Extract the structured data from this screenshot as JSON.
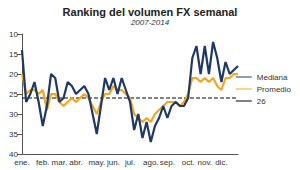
{
  "chart_data": {
    "type": "line",
    "title": "Ranking del volumen FX semanal",
    "subtitle": "2007-2014",
    "categories": [
      "ene.",
      null,
      null,
      null,
      null,
      "feb.",
      null,
      null,
      null,
      "mar.",
      null,
      null,
      null,
      "abr.",
      null,
      null,
      null,
      null,
      "may.",
      null,
      null,
      null,
      "jun.",
      null,
      null,
      null,
      "jul.",
      null,
      null,
      null,
      null,
      "ago.",
      null,
      null,
      null,
      "sep.",
      null,
      null,
      null,
      null,
      "oct.",
      null,
      null,
      null,
      "nov.",
      null,
      null,
      null,
      "dic.",
      null,
      null,
      null,
      null
    ],
    "series": [
      {
        "name": "Mediana",
        "color": "#1f3864",
        "line_style": "solid",
        "values": [
          14,
          27,
          25,
          22,
          27,
          33,
          28,
          20,
          21,
          27,
          26,
          22,
          23,
          25,
          24,
          23,
          25,
          30,
          35,
          28,
          21,
          24,
          21,
          25,
          21,
          24,
          27,
          34,
          30,
          36,
          32,
          37,
          33,
          31,
          28,
          31,
          28,
          27,
          28,
          28,
          26,
          16,
          13,
          20,
          13,
          20,
          12,
          16,
          22,
          17,
          20,
          19,
          18
        ]
      },
      {
        "name": "Promedio",
        "color": "#f5a623",
        "line_style": "solid",
        "values": [
          20,
          25,
          24,
          24,
          25,
          24,
          29,
          25,
          25,
          27,
          28,
          27,
          26,
          27,
          26,
          25,
          26,
          28,
          30,
          27,
          25,
          25,
          23,
          24,
          24,
          25,
          26,
          30,
          31,
          32,
          31,
          32,
          30,
          29,
          28,
          27,
          27,
          27,
          28,
          27,
          25,
          21,
          21,
          22,
          21,
          22,
          21,
          23,
          24,
          21,
          21,
          20,
          20
        ]
      },
      {
        "name": "26",
        "color": "#000000",
        "line_style": "dashed",
        "values": [
          26,
          26,
          26,
          26,
          26,
          26,
          26,
          26,
          26,
          26,
          26,
          26,
          26,
          26,
          26,
          26,
          26,
          26,
          26,
          26,
          26,
          26,
          26,
          26,
          26,
          26,
          26,
          26,
          26,
          26,
          26,
          26,
          26,
          26,
          26,
          26,
          26,
          26,
          26,
          26,
          26,
          26,
          26,
          26,
          26,
          26,
          26,
          26,
          26,
          26,
          26,
          26,
          26
        ]
      }
    ],
    "ylim": [
      40,
      10
    ],
    "yticks": [
      10,
      15,
      20,
      25,
      30,
      35,
      40
    ],
    "grid": false,
    "legend": "right"
  }
}
